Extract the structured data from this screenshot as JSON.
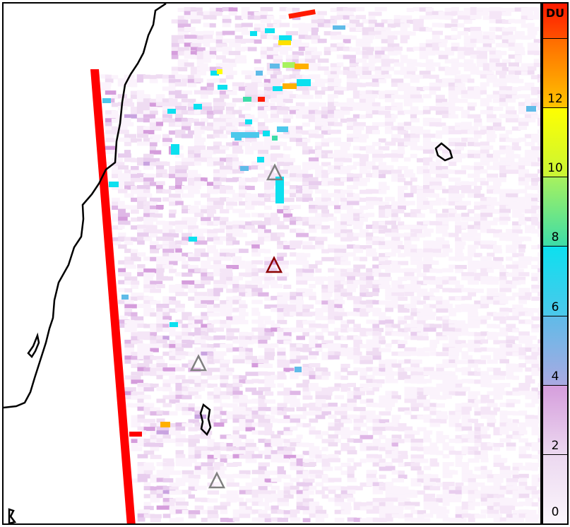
{
  "colorbar": {
    "unit": "DU",
    "tick_labels": [
      "0",
      "2",
      "4",
      "6",
      "8",
      "10",
      "12",
      ""
    ],
    "tick_values": [
      0,
      2,
      4,
      6,
      8,
      10,
      12,
      14
    ],
    "range": [
      0,
      15
    ],
    "bands": [
      {
        "from": 0,
        "to": 2,
        "colors": [
          "#fbf6fc",
          "#ecd8f0"
        ]
      },
      {
        "from": 2,
        "to": 4,
        "colors": [
          "#ecd8f0",
          "#d59ddc"
        ]
      },
      {
        "from": 4,
        "to": 6,
        "colors": [
          "#aaa9e2",
          "#5fbbe8"
        ]
      },
      {
        "from": 6,
        "to": 8,
        "colors": [
          "#4cc8eb",
          "#0ce0ef"
        ]
      },
      {
        "from": 8,
        "to": 10,
        "colors": [
          "#3ddca8",
          "#a8f25e"
        ]
      },
      {
        "from": 10,
        "to": 12,
        "colors": [
          "#c9f536",
          "#ffff00"
        ]
      },
      {
        "from": 12,
        "to": 14,
        "colors": [
          "#ffc400",
          "#ff6a00"
        ]
      },
      {
        "from": 14,
        "to": 15,
        "colors": [
          "#ff5000",
          "#ff1a00"
        ]
      }
    ]
  },
  "map": {
    "background": "#ffffff",
    "swath_edge_color": "#ff0000",
    "coastline_color": "#000000",
    "markers": [
      {
        "icon": "volcano-triangle-icon",
        "color": "#808080"
      },
      {
        "icon": "volcano-triangle-icon",
        "color": "#8b0000"
      },
      {
        "icon": "volcano-triangle-icon",
        "color": "#808080"
      },
      {
        "icon": "volcano-triangle-icon",
        "color": "#808080"
      }
    ]
  }
}
